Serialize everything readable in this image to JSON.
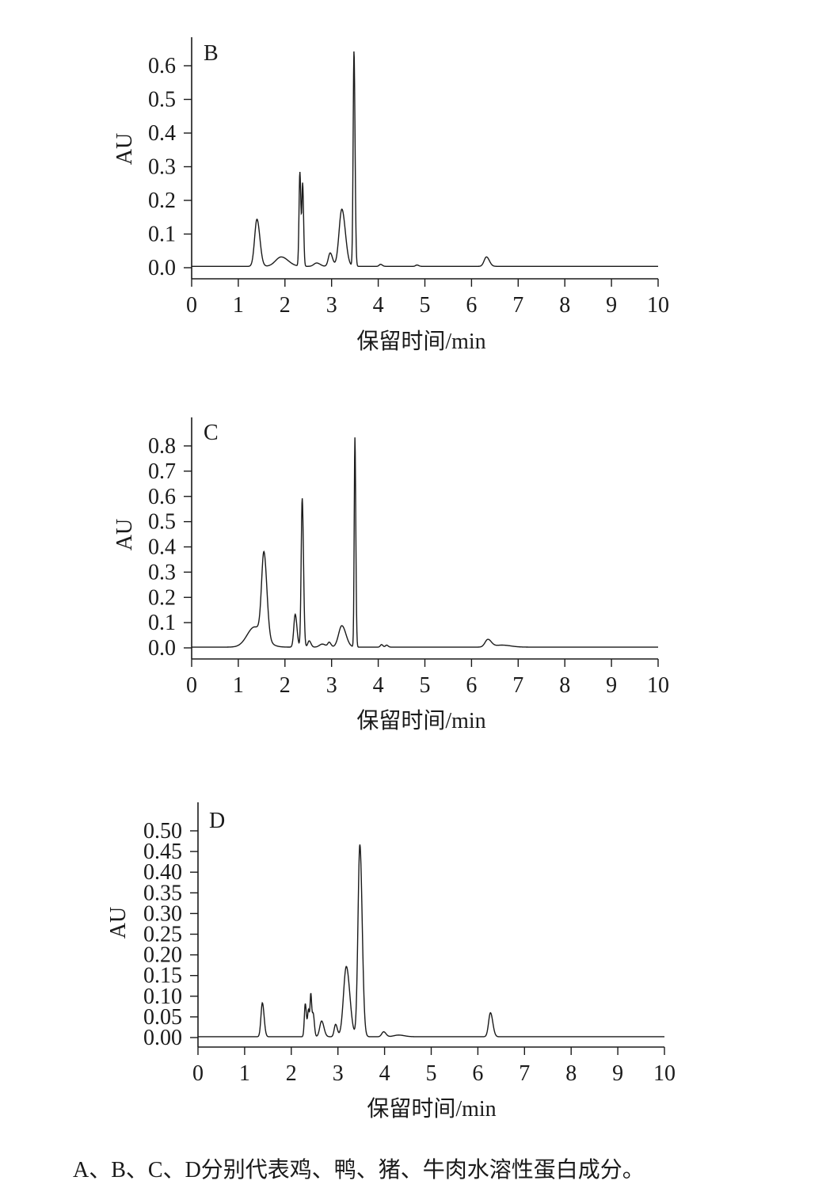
{
  "caption": "A、B、C、D分别代表鸡、鸭、猪、牛肉水溶性蛋白成分。",
  "chart_data": [
    {
      "type": "line",
      "panel": "B",
      "xlabel": "保留时间/min",
      "ylabel": "AU",
      "xlim": [
        0,
        10
      ],
      "ylim": [
        0,
        0.65
      ],
      "xticks": [
        "0",
        "1",
        "2",
        "3",
        "4",
        "5",
        "6",
        "7",
        "8",
        "9",
        "10"
      ],
      "yticks": [
        "0.0",
        "0.1",
        "0.2",
        "0.3",
        "0.4",
        "0.5",
        "0.6"
      ],
      "baseline": 0.004,
      "peaks": [
        {
          "t": 1.4,
          "h": 0.14,
          "w": 0.05
        },
        {
          "t": 1.92,
          "h": 0.028,
          "w": 0.12
        },
        {
          "t": 2.32,
          "h": 0.28,
          "w": 0.018
        },
        {
          "t": 2.38,
          "h": 0.24,
          "w": 0.016
        },
        {
          "t": 2.68,
          "h": 0.01,
          "w": 0.06
        },
        {
          "t": 2.97,
          "h": 0.04,
          "w": 0.04
        },
        {
          "t": 3.22,
          "h": 0.17,
          "w": 0.06
        },
        {
          "t": 3.48,
          "h": 0.64,
          "w": 0.018
        },
        {
          "t": 4.05,
          "h": 0.006,
          "w": 0.03
        },
        {
          "t": 4.83,
          "h": 0.004,
          "w": 0.03
        },
        {
          "t": 6.32,
          "h": 0.028,
          "w": 0.05
        }
      ]
    },
    {
      "type": "line",
      "panel": "C",
      "xlabel": "保留时间/min",
      "ylabel": "AU",
      "xlim": [
        0,
        10
      ],
      "ylim": [
        0,
        0.85
      ],
      "xticks": [
        "0",
        "1",
        "2",
        "3",
        "4",
        "5",
        "6",
        "7",
        "8",
        "9",
        "10"
      ],
      "yticks": [
        "0.0",
        "0.1",
        "0.2",
        "0.3",
        "0.4",
        "0.5",
        "0.6",
        "0.7",
        "0.8"
      ],
      "baseline": 0.003,
      "peaks": [
        {
          "t": 1.35,
          "h": 0.08,
          "w": 0.16
        },
        {
          "t": 1.55,
          "h": 0.33,
          "w": 0.05
        },
        {
          "t": 2.22,
          "h": 0.13,
          "w": 0.03
        },
        {
          "t": 2.37,
          "h": 0.59,
          "w": 0.022
        },
        {
          "t": 2.52,
          "h": 0.025,
          "w": 0.03
        },
        {
          "t": 2.8,
          "h": 0.012,
          "w": 0.06
        },
        {
          "t": 2.95,
          "h": 0.018,
          "w": 0.03
        },
        {
          "t": 3.22,
          "h": 0.085,
          "w": 0.07
        },
        {
          "t": 3.5,
          "h": 0.83,
          "w": 0.015
        },
        {
          "t": 4.07,
          "h": 0.01,
          "w": 0.025
        },
        {
          "t": 4.18,
          "h": 0.008,
          "w": 0.025
        },
        {
          "t": 6.35,
          "h": 0.03,
          "w": 0.06
        },
        {
          "t": 6.65,
          "h": 0.008,
          "w": 0.15
        }
      ]
    },
    {
      "type": "line",
      "panel": "D",
      "xlabel": "保留时间/min",
      "ylabel": "AU",
      "xlim": [
        0,
        10
      ],
      "ylim": [
        0,
        0.5
      ],
      "xticks": [
        "0",
        "1",
        "2",
        "3",
        "4",
        "5",
        "6",
        "7",
        "8",
        "9",
        "10"
      ],
      "yticks": [
        "0.00",
        "0.05",
        "0.10",
        "0.15",
        "0.20",
        "0.25",
        "0.30",
        "0.35",
        "0.40",
        "0.45",
        "0.50"
      ],
      "baseline": 0.002,
      "peaks": [
        {
          "t": 1.38,
          "h": 0.082,
          "w": 0.03
        },
        {
          "t": 2.3,
          "h": 0.08,
          "w": 0.02
        },
        {
          "t": 2.37,
          "h": 0.065,
          "w": 0.02
        },
        {
          "t": 2.42,
          "h": 0.095,
          "w": 0.015
        },
        {
          "t": 2.47,
          "h": 0.055,
          "w": 0.02
        },
        {
          "t": 2.65,
          "h": 0.038,
          "w": 0.04
        },
        {
          "t": 2.95,
          "h": 0.03,
          "w": 0.03
        },
        {
          "t": 3.18,
          "h": 0.17,
          "w": 0.06
        },
        {
          "t": 3.47,
          "h": 0.465,
          "w": 0.04
        },
        {
          "t": 3.98,
          "h": 0.012,
          "w": 0.04
        },
        {
          "t": 4.3,
          "h": 0.004,
          "w": 0.1
        },
        {
          "t": 6.27,
          "h": 0.058,
          "w": 0.04
        }
      ]
    }
  ]
}
